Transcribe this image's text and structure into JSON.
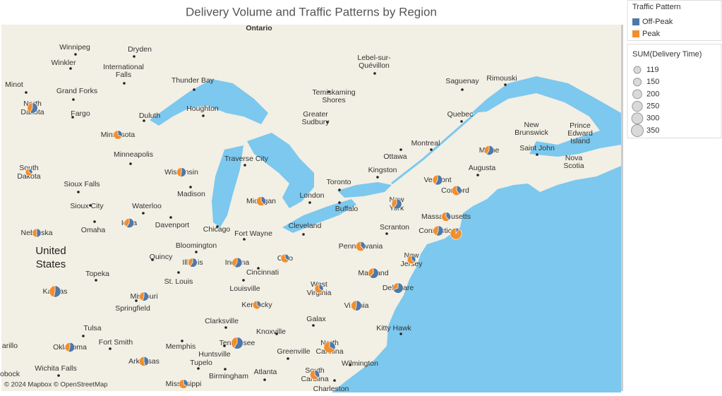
{
  "chart_data": {
    "type": "map-pie",
    "title": "Delivery Volume and Traffic Patterns by Region",
    "legend": {
      "color_title": "Traffic Pattern",
      "size_title": "SUM(Delivery Time)",
      "size_values": [
        119,
        150,
        200,
        250,
        300,
        350
      ]
    },
    "series": [
      {
        "name": "Off-Peak",
        "color": "#4e79a7"
      },
      {
        "name": "Peak",
        "color": "#f28e2b"
      }
    ],
    "regions": [
      {
        "name": "North Dakota",
        "values": [
          150,
          110
        ]
      },
      {
        "name": "Minnesota",
        "values": [
          60,
          130
        ]
      },
      {
        "name": "South Dakota",
        "values": [
          40,
          80
        ]
      },
      {
        "name": "Wisconsin",
        "values": [
          110,
          100
        ]
      },
      {
        "name": "Michigan",
        "values": [
          80,
          130
        ]
      },
      {
        "name": "Iowa",
        "values": [
          130,
          90
        ]
      },
      {
        "name": "Nebraska",
        "values": [
          90,
          90
        ]
      },
      {
        "name": "Illinois",
        "values": [
          120,
          80
        ]
      },
      {
        "name": "Indiana",
        "values": [
          140,
          100
        ]
      },
      {
        "name": "Ohio",
        "values": [
          60,
          120
        ]
      },
      {
        "name": "Kansas",
        "values": [
          170,
          150
        ]
      },
      {
        "name": "Missouri",
        "values": [
          110,
          90
        ]
      },
      {
        "name": "Kentucky",
        "values": [
          60,
          110
        ]
      },
      {
        "name": "Tennessee",
        "values": [
          200,
          140
        ]
      },
      {
        "name": "Oklahoma",
        "values": [
          120,
          100
        ]
      },
      {
        "name": "Arkansas",
        "values": [
          100,
          120
        ]
      },
      {
        "name": "Mississippi",
        "values": [
          70,
          130
        ]
      },
      {
        "name": "North Carolina",
        "values": [
          100,
          220
        ]
      },
      {
        "name": "South Carolina",
        "values": [
          80,
          140
        ]
      },
      {
        "name": "Virginia",
        "values": [
          140,
          120
        ]
      },
      {
        "name": "West Virginia",
        "values": [
          60,
          120
        ]
      },
      {
        "name": "Maryland",
        "values": [
          160,
          100
        ]
      },
      {
        "name": "Delaware",
        "values": [
          180,
          80
        ]
      },
      {
        "name": "Pennsylvania",
        "values": [
          80,
          140
        ]
      },
      {
        "name": "New Jersey",
        "values": [
          60,
          110
        ]
      },
      {
        "name": "New York",
        "values": [
          150,
          100
        ]
      },
      {
        "name": "Vermont",
        "values": [
          140,
          100
        ]
      },
      {
        "name": "Connecticut",
        "values": [
          140,
          110
        ]
      },
      {
        "name": "Massachusetts",
        "values": [
          80,
          130
        ]
      },
      {
        "name": null,
        "values": [
          30,
          290
        ]
      },
      {
        "name": null,
        "values": [
          90,
          140
        ]
      },
      {
        "name": "Maine",
        "values": [
          130,
          90
        ]
      }
    ],
    "country_label": [
      "United",
      "States"
    ],
    "region_label": "Ontario",
    "places": [
      "Winnipeg",
      "Dryden",
      "Winkler",
      [
        "International",
        "Falls"
      ],
      [
        "Lebel-sur-",
        "Quévillon"
      ],
      "Thunder Bay",
      "Minot",
      "Grand Forks",
      "Houghton",
      [
        "Temiskaming",
        "Shores"
      ],
      "Saguenay",
      "Rimouski",
      "Fargo",
      "Duluth",
      [
        "Greater",
        "Sudbury"
      ],
      "Quebec",
      [
        "New",
        "Brunswick"
      ],
      [
        "Prince",
        "Edward",
        "Island"
      ],
      "Montreal",
      "Saint John",
      [
        "Nova",
        "Scotia"
      ],
      "Minneapolis",
      "Traverse City",
      "Ottawa",
      "Kingston",
      "Augusta",
      "Sioux Falls",
      "Toronto",
      "Madison",
      "London",
      "Buffalo",
      "Sioux City",
      "Waterloo",
      "Davenport",
      "Omaha",
      "Chicago",
      "Fort Wayne",
      "Cleveland",
      "Scranton",
      "Bloomington",
      "Quincy",
      "Cincinnati",
      "Topeka",
      "St. Louis",
      "Louisville",
      "Springfield",
      "Galax",
      "Clarksville",
      "Kitty Hawk",
      "Knoxville",
      "Tulsa",
      "Fort Smith",
      "Memphis",
      "Huntsville",
      "Greenville",
      "Wilmington",
      "Tupelo",
      "Wichita Falls",
      "Birmingham",
      "Atlanta",
      "Charleston",
      "Concord",
      "arillo",
      "obock"
    ],
    "attribution": "© 2024 Mapbox © OpenStreetMap"
  }
}
